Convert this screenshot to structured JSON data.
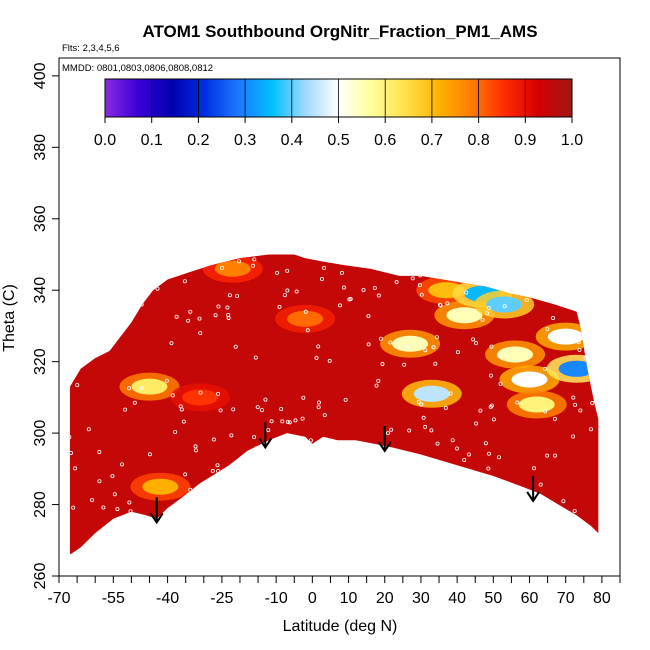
{
  "chart_data": {
    "type": "heatmap",
    "title": "ATOM1 Southbound OrgNitr_Fraction_PM1_AMS",
    "flights_note": "Flts: 2,3,4,5,6",
    "dates_note": "MMDD: 0801,0803,0806,0808,0812",
    "xlabel": "Latitude (deg N)",
    "ylabel": "Theta (C)",
    "xlim": [
      -70,
      85
    ],
    "ylim": [
      260,
      405
    ],
    "x_tick_labels": [
      "-70",
      "-55",
      "-40",
      "-25",
      "-10",
      "0",
      "10",
      "20",
      "30",
      "40",
      "50",
      "60",
      "70",
      "80"
    ],
    "x_tick_values": [
      -70,
      -55,
      -40,
      -25,
      -10,
      0,
      10,
      20,
      30,
      40,
      50,
      60,
      70,
      80
    ],
    "x_minor_ticks": [
      -65,
      -60,
      -50,
      -45,
      -35,
      -30,
      -20,
      -15,
      -5,
      5,
      15,
      25,
      35,
      45,
      55,
      65,
      75,
      85
    ],
    "y_tick_labels": [
      "260",
      "280",
      "300",
      "320",
      "340",
      "360",
      "380",
      "400"
    ],
    "y_tick_values": [
      260,
      280,
      300,
      320,
      340,
      360,
      380,
      400
    ],
    "colorbar": {
      "labels": [
        "0.0",
        "0.1",
        "0.2",
        "0.3",
        "0.4",
        "0.5",
        "0.6",
        "0.7",
        "0.8",
        "0.9",
        "1.0"
      ],
      "range": [
        0,
        1
      ],
      "colors": [
        "#8a2be2",
        "#3a00d6",
        "#0000b0",
        "#0030e0",
        "#1e78ff",
        "#00bfff",
        "#9fd8ff",
        "#ffffff",
        "#ffff9a",
        "#ffe14a",
        "#ffb300",
        "#ff7b00",
        "#ff2a00",
        "#d40000",
        "#a01818"
      ]
    },
    "background_value": 0.95,
    "domain_outline": [
      [
        -67,
        266
      ],
      [
        -64,
        268
      ],
      [
        -60,
        272
      ],
      [
        -55,
        276
      ],
      [
        -50,
        278
      ],
      [
        -46,
        277
      ],
      [
        -43,
        276
      ],
      [
        -40,
        279
      ],
      [
        -36,
        282
      ],
      [
        -31,
        286
      ],
      [
        -23,
        291
      ],
      [
        -18,
        295
      ],
      [
        -12,
        298
      ],
      [
        -7,
        300
      ],
      [
        -2,
        299
      ],
      [
        0,
        297
      ],
      [
        3,
        299
      ],
      [
        7,
        298
      ],
      [
        12,
        298
      ],
      [
        17,
        297
      ],
      [
        22,
        296
      ],
      [
        30,
        294
      ],
      [
        40,
        291
      ],
      [
        50,
        288
      ],
      [
        58,
        285
      ],
      [
        63,
        283
      ],
      [
        68,
        280
      ],
      [
        73,
        277
      ],
      [
        77,
        274
      ],
      [
        79,
        272
      ],
      [
        79,
        304
      ],
      [
        78,
        308
      ],
      [
        77,
        313
      ],
      [
        76,
        318
      ],
      [
        75,
        324
      ],
      [
        74,
        330
      ],
      [
        73,
        334
      ],
      [
        67,
        336
      ],
      [
        60,
        338
      ],
      [
        55,
        339
      ],
      [
        48,
        341
      ],
      [
        42,
        342
      ],
      [
        36,
        343
      ],
      [
        30,
        344
      ],
      [
        24,
        344
      ],
      [
        16,
        346
      ],
      [
        9,
        347
      ],
      [
        3,
        348
      ],
      [
        -2,
        349
      ],
      [
        -5,
        350
      ],
      [
        -12,
        350
      ],
      [
        -20,
        349
      ],
      [
        -28,
        347
      ],
      [
        -34,
        345
      ],
      [
        -40,
        343
      ],
      [
        -44,
        340
      ],
      [
        -47,
        336
      ],
      [
        -50,
        331
      ],
      [
        -53,
        327
      ],
      [
        -56,
        323
      ],
      [
        -60,
        321
      ],
      [
        -64,
        318
      ],
      [
        -67,
        313
      ]
    ],
    "anomalies": [
      {
        "lat": -45,
        "theta": 313,
        "value": 0.62
      },
      {
        "lat": -42,
        "theta": 285,
        "value": 0.72
      },
      {
        "lat": -31,
        "theta": 310,
        "value": 0.85
      },
      {
        "lat": -22,
        "theta": 346,
        "value": 0.78
      },
      {
        "lat": -2,
        "theta": 332,
        "value": 0.8
      },
      {
        "lat": 27,
        "theta": 325,
        "value": 0.55
      },
      {
        "lat": 33,
        "theta": 311,
        "value": 0.45
      },
      {
        "lat": 37,
        "theta": 340,
        "value": 0.7
      },
      {
        "lat": 42,
        "theta": 333,
        "value": 0.55
      },
      {
        "lat": 47,
        "theta": 339,
        "value": 0.35
      },
      {
        "lat": 53,
        "theta": 336,
        "value": 0.4
      },
      {
        "lat": 56,
        "theta": 322,
        "value": 0.55
      },
      {
        "lat": 60,
        "theta": 315,
        "value": 0.5
      },
      {
        "lat": 62,
        "theta": 308,
        "value": 0.6
      },
      {
        "lat": 70,
        "theta": 327,
        "value": 0.5
      },
      {
        "lat": 73,
        "theta": 318,
        "value": 0.3
      }
    ],
    "arrows": [
      {
        "lat": -43,
        "theta_top": 282,
        "theta_tip": 275
      },
      {
        "lat": -13,
        "theta_top": 303,
        "theta_tip": 296
      },
      {
        "lat": 20,
        "theta_top": 302,
        "theta_tip": 295
      },
      {
        "lat": 61,
        "theta_top": 288,
        "theta_tip": 281
      }
    ]
  }
}
